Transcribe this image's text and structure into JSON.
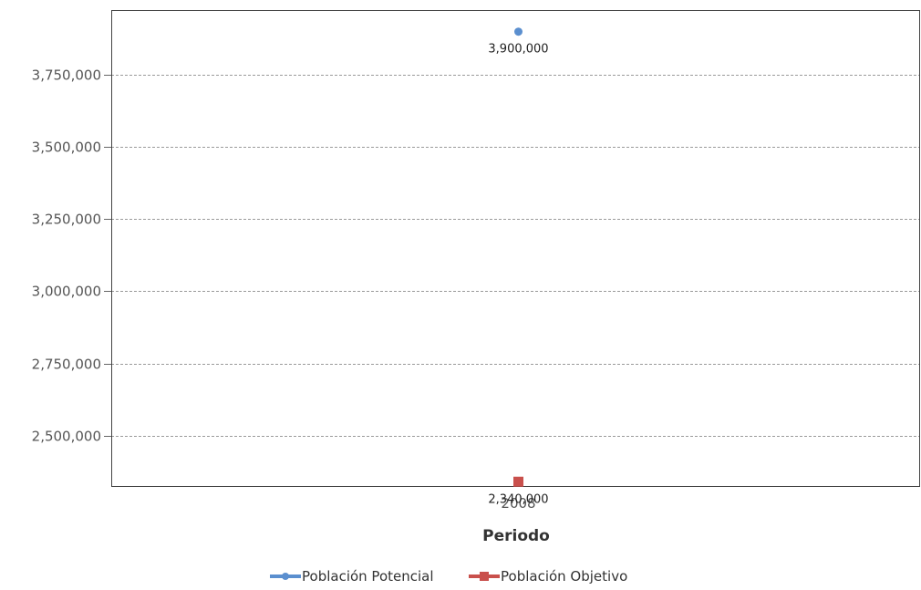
{
  "chart_data": {
    "type": "scatter",
    "categories": [
      "2008"
    ],
    "xlabel": "Periodo",
    "ylabel": "",
    "ylim": [
      2325000,
      3975000
    ],
    "yticks": [
      2500000,
      2750000,
      3000000,
      3250000,
      3500000,
      3750000
    ],
    "ytick_labels": [
      "2,500,000",
      "2,750,000",
      "3,000,000",
      "3,250,000",
      "3,500,000",
      "3,750,000"
    ],
    "grid": true,
    "legend_position": "bottom",
    "series": [
      {
        "name": "Población Potencial",
        "marker": "circle",
        "color": "#5b8fcf",
        "values": [
          3900000
        ],
        "labels": [
          "3,900,000"
        ]
      },
      {
        "name": "Población Objetivo",
        "marker": "square",
        "color": "#c9504c",
        "values": [
          2340000
        ],
        "labels": [
          "2,340,000"
        ]
      }
    ]
  }
}
